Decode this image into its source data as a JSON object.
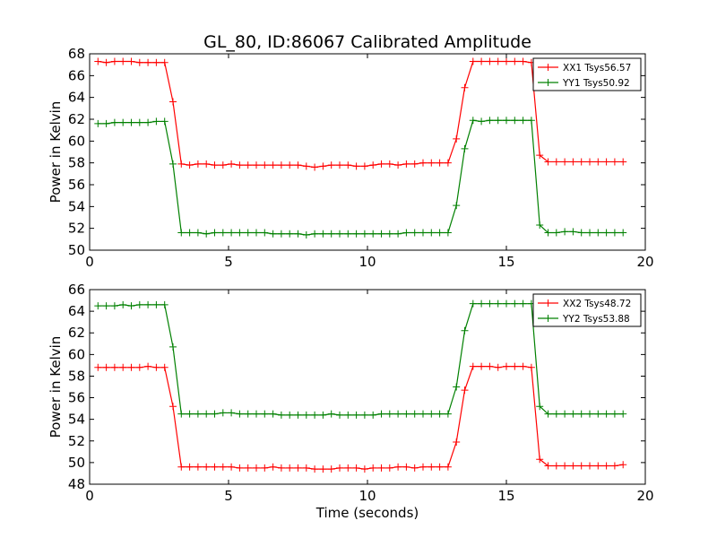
{
  "title": "GL_80, ID:86067 Calibrated Amplitude",
  "chart_data": [
    {
      "type": "line",
      "ylabel": "Power in Kelvin",
      "xlabel": "",
      "xlim": [
        0,
        20
      ],
      "ylim": [
        50,
        68
      ],
      "xticks": [
        "0",
        "5",
        "10",
        "15",
        "20"
      ],
      "yticks": [
        "50",
        "52",
        "54",
        "56",
        "58",
        "60",
        "62",
        "64",
        "66",
        "68"
      ],
      "legend_position": "top-right",
      "marker": "plus",
      "x": [
        0.3,
        0.6,
        0.9,
        1.2,
        1.5,
        1.8,
        2.1,
        2.4,
        2.7,
        3.0,
        3.3,
        3.6,
        3.9,
        4.2,
        4.5,
        4.8,
        5.1,
        5.4,
        5.7,
        6.0,
        6.3,
        6.6,
        6.9,
        7.2,
        7.5,
        7.8,
        8.1,
        8.4,
        8.7,
        9.0,
        9.3,
        9.6,
        9.9,
        10.2,
        10.5,
        10.8,
        11.1,
        11.4,
        11.7,
        12.0,
        12.3,
        12.6,
        12.9,
        13.2,
        13.5,
        13.8,
        14.1,
        14.4,
        14.7,
        15.0,
        15.3,
        15.6,
        15.9,
        16.2,
        16.5,
        16.8,
        17.1,
        17.4,
        17.7,
        18.0,
        18.3,
        18.6,
        18.9,
        19.2
      ],
      "series": [
        {
          "name": "XX1 Tsys56.57",
          "color": "#ff0000",
          "values": [
            67.3,
            67.2,
            67.3,
            67.3,
            67.3,
            67.2,
            67.2,
            67.2,
            67.2,
            63.6,
            57.9,
            57.8,
            57.9,
            57.9,
            57.8,
            57.8,
            57.9,
            57.8,
            57.8,
            57.8,
            57.8,
            57.8,
            57.8,
            57.8,
            57.8,
            57.7,
            57.6,
            57.7,
            57.8,
            57.8,
            57.8,
            57.7,
            57.7,
            57.8,
            57.9,
            57.9,
            57.8,
            57.9,
            57.9,
            58.0,
            58.0,
            58.0,
            58.0,
            60.2,
            64.9,
            67.3,
            67.3,
            67.3,
            67.3,
            67.3,
            67.3,
            67.3,
            67.2,
            58.7,
            58.1,
            58.1,
            58.1,
            58.1,
            58.1,
            58.1,
            58.1,
            58.1,
            58.1,
            58.1
          ]
        },
        {
          "name": "YY1 Tsys50.92",
          "color": "#008000",
          "values": [
            61.6,
            61.6,
            61.7,
            61.7,
            61.7,
            61.7,
            61.7,
            61.8,
            61.8,
            57.9,
            51.6,
            51.6,
            51.6,
            51.5,
            51.6,
            51.6,
            51.6,
            51.6,
            51.6,
            51.6,
            51.6,
            51.5,
            51.5,
            51.5,
            51.5,
            51.4,
            51.5,
            51.5,
            51.5,
            51.5,
            51.5,
            51.5,
            51.5,
            51.5,
            51.5,
            51.5,
            51.5,
            51.6,
            51.6,
            51.6,
            51.6,
            51.6,
            51.6,
            54.1,
            59.3,
            61.9,
            61.8,
            61.9,
            61.9,
            61.9,
            61.9,
            61.9,
            61.9,
            52.3,
            51.6,
            51.6,
            51.7,
            51.7,
            51.6,
            51.6,
            51.6,
            51.6,
            51.6,
            51.6
          ]
        }
      ]
    },
    {
      "type": "line",
      "ylabel": "Power in Kelvin",
      "xlabel": "Time (seconds)",
      "xlim": [
        0,
        20
      ],
      "ylim": [
        48,
        66
      ],
      "xticks": [
        "0",
        "5",
        "10",
        "15",
        "20"
      ],
      "yticks": [
        "48",
        "50",
        "52",
        "54",
        "56",
        "58",
        "60",
        "62",
        "64",
        "66"
      ],
      "legend_position": "top-right",
      "marker": "plus",
      "x": [
        0.3,
        0.6,
        0.9,
        1.2,
        1.5,
        1.8,
        2.1,
        2.4,
        2.7,
        3.0,
        3.3,
        3.6,
        3.9,
        4.2,
        4.5,
        4.8,
        5.1,
        5.4,
        5.7,
        6.0,
        6.3,
        6.6,
        6.9,
        7.2,
        7.5,
        7.8,
        8.1,
        8.4,
        8.7,
        9.0,
        9.3,
        9.6,
        9.9,
        10.2,
        10.5,
        10.8,
        11.1,
        11.4,
        11.7,
        12.0,
        12.3,
        12.6,
        12.9,
        13.2,
        13.5,
        13.8,
        14.1,
        14.4,
        14.7,
        15.0,
        15.3,
        15.6,
        15.9,
        16.2,
        16.5,
        16.8,
        17.1,
        17.4,
        17.7,
        18.0,
        18.3,
        18.6,
        18.9,
        19.2
      ],
      "series": [
        {
          "name": "XX2 Tsys48.72",
          "color": "#ff0000",
          "values": [
            58.8,
            58.8,
            58.8,
            58.8,
            58.8,
            58.8,
            58.9,
            58.8,
            58.8,
            55.2,
            49.6,
            49.6,
            49.6,
            49.6,
            49.6,
            49.6,
            49.6,
            49.5,
            49.5,
            49.5,
            49.5,
            49.6,
            49.5,
            49.5,
            49.5,
            49.5,
            49.4,
            49.4,
            49.4,
            49.5,
            49.5,
            49.5,
            49.4,
            49.5,
            49.5,
            49.5,
            49.6,
            49.6,
            49.5,
            49.6,
            49.6,
            49.6,
            49.6,
            51.9,
            56.7,
            58.9,
            58.9,
            58.9,
            58.8,
            58.9,
            58.9,
            58.9,
            58.8,
            50.3,
            49.7,
            49.7,
            49.7,
            49.7,
            49.7,
            49.7,
            49.7,
            49.7,
            49.7,
            49.8
          ]
        },
        {
          "name": "YY2 Tsys53.88",
          "color": "#008000",
          "values": [
            64.5,
            64.5,
            64.5,
            64.6,
            64.5,
            64.6,
            64.6,
            64.6,
            64.6,
            60.7,
            54.5,
            54.5,
            54.5,
            54.5,
            54.5,
            54.6,
            54.6,
            54.5,
            54.5,
            54.5,
            54.5,
            54.5,
            54.4,
            54.4,
            54.4,
            54.4,
            54.4,
            54.4,
            54.5,
            54.4,
            54.4,
            54.4,
            54.4,
            54.4,
            54.5,
            54.5,
            54.5,
            54.5,
            54.5,
            54.5,
            54.5,
            54.5,
            54.5,
            57.0,
            62.2,
            64.7,
            64.7,
            64.7,
            64.7,
            64.7,
            64.7,
            64.7,
            64.7,
            55.2,
            54.5,
            54.5,
            54.5,
            54.5,
            54.5,
            54.5,
            54.5,
            54.5,
            54.5,
            54.5
          ]
        }
      ]
    }
  ]
}
